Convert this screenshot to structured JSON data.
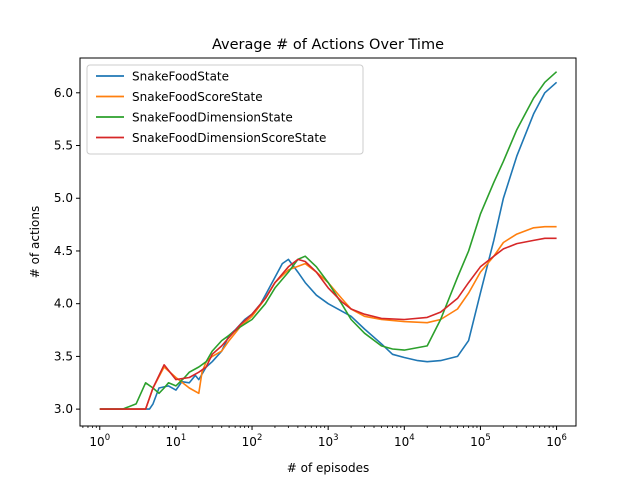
{
  "chart_data": {
    "type": "line",
    "title": "Average # of Actions Over Time",
    "xlabel": "# of episodes",
    "ylabel": "# of actions",
    "xscale": "log",
    "xlim": [
      0.55,
      1800000
    ],
    "ylim": [
      2.84,
      6.33
    ],
    "xtick_labels": [
      {
        "value": 1,
        "base": "10",
        "exp": "0"
      },
      {
        "value": 10,
        "base": "10",
        "exp": "1"
      },
      {
        "value": 100,
        "base": "10",
        "exp": "2"
      },
      {
        "value": 1000,
        "base": "10",
        "exp": "3"
      },
      {
        "value": 10000,
        "base": "10",
        "exp": "4"
      },
      {
        "value": 100000,
        "base": "10",
        "exp": "5"
      },
      {
        "value": 1000000,
        "base": "10",
        "exp": "6"
      }
    ],
    "yticks": [
      "3.0",
      "3.5",
      "4.0",
      "4.5",
      "5.0",
      "5.5",
      "6.0"
    ],
    "grid": false,
    "legend_position": "top-left",
    "series": [
      {
        "name": "SnakeFoodState",
        "color": "#1f77b4",
        "points": [
          [
            1,
            3.0
          ],
          [
            2,
            3.0
          ],
          [
            3,
            3.0
          ],
          [
            4.5,
            3.0
          ],
          [
            5,
            3.05
          ],
          [
            6,
            3.2
          ],
          [
            8,
            3.22
          ],
          [
            10,
            3.18
          ],
          [
            12,
            3.26
          ],
          [
            15,
            3.25
          ],
          [
            18,
            3.32
          ],
          [
            20,
            3.28
          ],
          [
            25,
            3.4
          ],
          [
            30,
            3.45
          ],
          [
            40,
            3.55
          ],
          [
            50,
            3.7
          ],
          [
            60,
            3.75
          ],
          [
            80,
            3.85
          ],
          [
            100,
            3.9
          ],
          [
            130,
            4.0
          ],
          [
            160,
            4.12
          ],
          [
            200,
            4.25
          ],
          [
            250,
            4.38
          ],
          [
            300,
            4.42
          ],
          [
            400,
            4.3
          ],
          [
            500,
            4.2
          ],
          [
            700,
            4.08
          ],
          [
            1000,
            4.0
          ],
          [
            1500,
            3.93
          ],
          [
            2000,
            3.88
          ],
          [
            3000,
            3.76
          ],
          [
            5000,
            3.62
          ],
          [
            7000,
            3.52
          ],
          [
            10000,
            3.49
          ],
          [
            15000,
            3.46
          ],
          [
            20000,
            3.45
          ],
          [
            30000,
            3.46
          ],
          [
            50000,
            3.5
          ],
          [
            70000,
            3.65
          ],
          [
            100000,
            4.1
          ],
          [
            150000,
            4.6
          ],
          [
            200000,
            5.0
          ],
          [
            300000,
            5.4
          ],
          [
            500000,
            5.8
          ],
          [
            700000,
            6.0
          ],
          [
            1000000,
            6.1
          ]
        ]
      },
      {
        "name": "SnakeFoodScoreState",
        "color": "#ff7f0e",
        "points": [
          [
            1,
            3.0
          ],
          [
            2,
            3.0
          ],
          [
            3,
            3.0
          ],
          [
            4,
            3.0
          ],
          [
            5,
            3.2
          ],
          [
            7,
            3.4
          ],
          [
            10,
            3.3
          ],
          [
            15,
            3.2
          ],
          [
            20,
            3.15
          ],
          [
            22,
            3.35
          ],
          [
            25,
            3.45
          ],
          [
            30,
            3.5
          ],
          [
            40,
            3.55
          ],
          [
            50,
            3.65
          ],
          [
            70,
            3.78
          ],
          [
            100,
            3.88
          ],
          [
            150,
            4.05
          ],
          [
            200,
            4.2
          ],
          [
            300,
            4.32
          ],
          [
            500,
            4.38
          ],
          [
            700,
            4.3
          ],
          [
            1000,
            4.2
          ],
          [
            1500,
            4.05
          ],
          [
            2000,
            3.95
          ],
          [
            3000,
            3.88
          ],
          [
            5000,
            3.85
          ],
          [
            10000,
            3.83
          ],
          [
            20000,
            3.82
          ],
          [
            30000,
            3.85
          ],
          [
            50000,
            3.95
          ],
          [
            70000,
            4.1
          ],
          [
            100000,
            4.3
          ],
          [
            150000,
            4.45
          ],
          [
            200000,
            4.58
          ],
          [
            300000,
            4.66
          ],
          [
            500000,
            4.72
          ],
          [
            700000,
            4.73
          ],
          [
            1000000,
            4.73
          ]
        ]
      },
      {
        "name": "SnakeFoodDimensionState",
        "color": "#2ca02c",
        "points": [
          [
            1,
            3.0
          ],
          [
            2,
            3.0
          ],
          [
            3,
            3.05
          ],
          [
            4,
            3.25
          ],
          [
            5,
            3.2
          ],
          [
            6,
            3.15
          ],
          [
            7,
            3.2
          ],
          [
            8,
            3.25
          ],
          [
            10,
            3.22
          ],
          [
            13,
            3.3
          ],
          [
            15,
            3.35
          ],
          [
            20,
            3.4
          ],
          [
            25,
            3.45
          ],
          [
            30,
            3.55
          ],
          [
            40,
            3.65
          ],
          [
            50,
            3.7
          ],
          [
            70,
            3.78
          ],
          [
            100,
            3.85
          ],
          [
            150,
            4.0
          ],
          [
            200,
            4.15
          ],
          [
            300,
            4.3
          ],
          [
            400,
            4.42
          ],
          [
            500,
            4.45
          ],
          [
            700,
            4.35
          ],
          [
            1000,
            4.2
          ],
          [
            1500,
            4.0
          ],
          [
            2000,
            3.85
          ],
          [
            3000,
            3.72
          ],
          [
            5000,
            3.6
          ],
          [
            7000,
            3.57
          ],
          [
            10000,
            3.56
          ],
          [
            20000,
            3.6
          ],
          [
            30000,
            3.85
          ],
          [
            50000,
            4.25
          ],
          [
            70000,
            4.5
          ],
          [
            100000,
            4.85
          ],
          [
            150000,
            5.15
          ],
          [
            200000,
            5.35
          ],
          [
            300000,
            5.65
          ],
          [
            500000,
            5.95
          ],
          [
            700000,
            6.1
          ],
          [
            1000000,
            6.2
          ]
        ]
      },
      {
        "name": "SnakeFoodDimensionScoreState",
        "color": "#d62728",
        "points": [
          [
            1,
            3.0
          ],
          [
            2,
            3.0
          ],
          [
            3,
            3.0
          ],
          [
            4,
            3.0
          ],
          [
            5,
            3.2
          ],
          [
            7,
            3.42
          ],
          [
            10,
            3.28
          ],
          [
            15,
            3.3
          ],
          [
            20,
            3.35
          ],
          [
            25,
            3.4
          ],
          [
            30,
            3.52
          ],
          [
            40,
            3.6
          ],
          [
            50,
            3.68
          ],
          [
            70,
            3.8
          ],
          [
            100,
            3.9
          ],
          [
            150,
            4.05
          ],
          [
            200,
            4.2
          ],
          [
            300,
            4.35
          ],
          [
            400,
            4.42
          ],
          [
            500,
            4.4
          ],
          [
            700,
            4.3
          ],
          [
            1000,
            4.15
          ],
          [
            1500,
            4.02
          ],
          [
            2000,
            3.95
          ],
          [
            3000,
            3.9
          ],
          [
            5000,
            3.86
          ],
          [
            10000,
            3.85
          ],
          [
            20000,
            3.87
          ],
          [
            30000,
            3.92
          ],
          [
            50000,
            4.05
          ],
          [
            70000,
            4.2
          ],
          [
            100000,
            4.35
          ],
          [
            150000,
            4.45
          ],
          [
            200000,
            4.52
          ],
          [
            300000,
            4.57
          ],
          [
            500000,
            4.6
          ],
          [
            700000,
            4.62
          ],
          [
            1000000,
            4.62
          ]
        ]
      }
    ]
  }
}
